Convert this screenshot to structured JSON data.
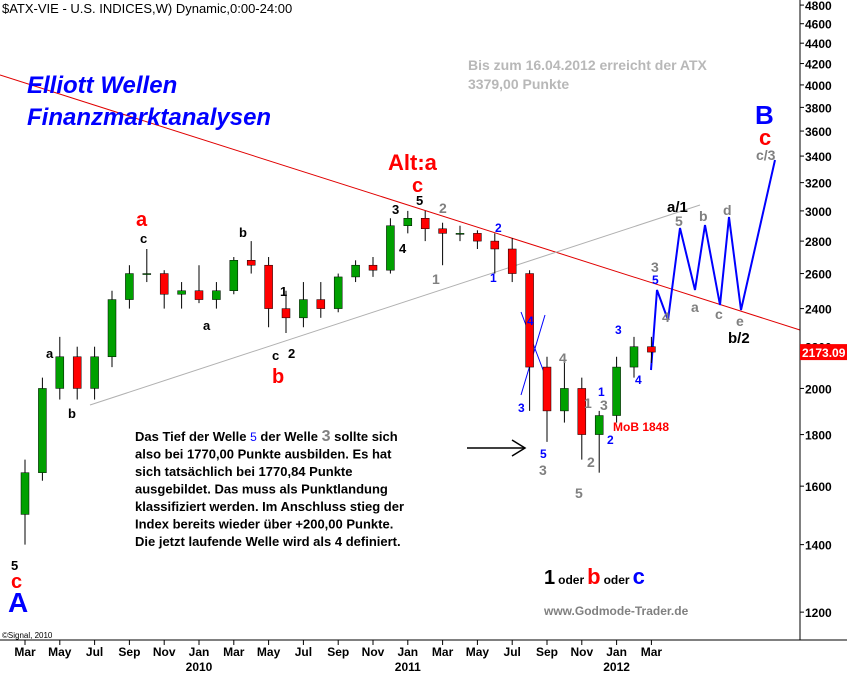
{
  "chart_data": {
    "type": "candlestick",
    "title": "$ATX-VIE - U.S. INDICES,W) Dynamic,0:00-24:00",
    "categories": [
      "Mar",
      null,
      "May",
      null,
      "Jul",
      null,
      "Sep",
      null,
      "Nov",
      null,
      "Jan",
      null,
      "Mar",
      null,
      "May",
      null,
      "Jul",
      null,
      "Sep",
      null,
      "Nov",
      null,
      "Jan",
      null,
      "Mar",
      null,
      "May",
      null,
      "Jul",
      null,
      "Sep",
      null,
      "Nov",
      null,
      "Jan",
      null,
      "Mar"
    ],
    "year_labels": [
      "2010",
      "2011",
      "2012"
    ],
    "open": [
      1500,
      1650,
      2000,
      2150,
      2000,
      2150,
      2450,
      2600,
      2600,
      2480,
      2500,
      2450,
      2500,
      2680,
      2650,
      2400,
      2350,
      2450,
      2400,
      2580,
      2650,
      2620,
      2900,
      2950,
      2880,
      2850,
      2850,
      2800,
      2750,
      2600,
      2100,
      1900,
      2000,
      1800,
      1880,
      2100,
      2200
    ],
    "high": [
      1700,
      2050,
      2250,
      2200,
      2200,
      2500,
      2650,
      2750,
      2620,
      2550,
      2650,
      2550,
      2700,
      2800,
      2700,
      2500,
      2550,
      2550,
      2600,
      2680,
      2700,
      2950,
      3000,
      3000,
      2920,
      2900,
      2870,
      2850,
      2820,
      2620,
      2150,
      2150,
      2050,
      1900,
      2150,
      2250,
      2250
    ],
    "low": [
      1400,
      1620,
      1950,
      1950,
      1950,
      2100,
      2400,
      2550,
      2400,
      2400,
      2430,
      2400,
      2480,
      2600,
      2300,
      2270,
      2300,
      2350,
      2380,
      2550,
      2580,
      2600,
      2850,
      2800,
      2650,
      2800,
      2750,
      2600,
      2550,
      1900,
      1770,
      1850,
      1700,
      1650,
      1850,
      2050,
      2120
    ],
    "close": [
      1650,
      2000,
      2150,
      2000,
      2150,
      2450,
      2600,
      2600,
      2480,
      2500,
      2450,
      2500,
      2680,
      2650,
      2400,
      2350,
      2450,
      2400,
      2580,
      2650,
      2620,
      2900,
      2950,
      2880,
      2850,
      2850,
      2800,
      2750,
      2600,
      2100,
      1900,
      2000,
      1800,
      1880,
      2100,
      2200,
      2173.09
    ],
    "up_color": "#00a000",
    "down_color": "#ff0000",
    "log_scale": true,
    "ylim": [
      1126,
      4856
    ],
    "yticks": [
      1200,
      1400,
      1600,
      1800,
      2000,
      2200,
      2400,
      2600,
      2800,
      3000,
      3200,
      3400,
      3600,
      3800,
      4000,
      4200,
      4400,
      4600,
      4800
    ],
    "annotations": [
      "Elliott Wellen",
      "Finanzmarktanalysen",
      "Bis zum 16.04.2012 erreicht der ATX",
      "3379,00 Punkte",
      "Alt:a",
      "c",
      "a",
      "c",
      "b",
      "a",
      "1",
      "c",
      "2",
      "b",
      "a",
      "b",
      "5",
      "c",
      "A",
      "3",
      "4",
      "5",
      "2",
      "1",
      "2",
      "1",
      "4",
      "3",
      "4",
      "5",
      "3",
      "1",
      "3",
      "1",
      "2",
      "2",
      "5",
      "3",
      "4",
      "3",
      "5",
      "4",
      "a/1",
      "5",
      "b",
      "d",
      "a",
      "c",
      "e",
      "b/2",
      "B",
      "c",
      "c/3",
      "MoB 1848",
      "www.Godmode-Trader.de",
      "©Signal, 2010"
    ],
    "note": {
      "first": [
        "Das Tief der Welle ",
        "5",
        " der Welle ",
        "3",
        " sollte sich"
      ],
      "rest": [
        "also bei 1770,00 Punkte ausbilden. Es hat",
        "sich tatsächlich bei 1770,84 Punkte",
        "ausgebildet. Das muss als Punktlandung",
        "klassifiziert werden. Im Anschluss stieg der",
        "Index bereits wieder über +200,00 Punkte.",
        "Die jetzt laufende Welle wird als 4 definiert."
      ]
    },
    "scenario": [
      "1",
      "oder",
      "b",
      "oder",
      "c"
    ]
  }
}
